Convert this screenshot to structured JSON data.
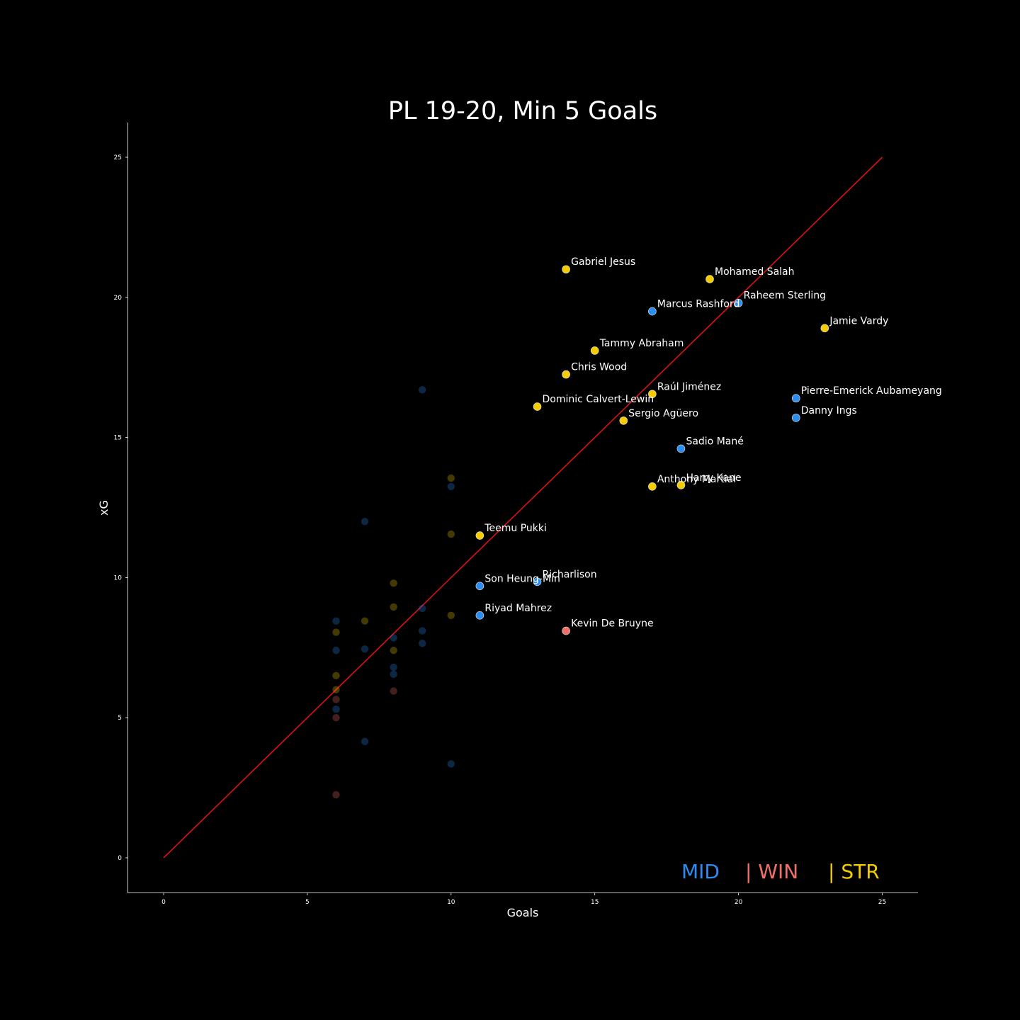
{
  "colors": {
    "background": "#000000",
    "MID": "#2b8df0",
    "WIN": "#f07068",
    "STR": "#f5cc00",
    "line": "#dd1111",
    "text": "#ffffff"
  },
  "legend": {
    "mid": "MID",
    "win": "| WIN",
    "str": "| STR"
  },
  "chart_data": {
    "type": "scatter",
    "title": "PL 19-20, Min 5 Goals",
    "xlabel": "Goals",
    "ylabel": "xG",
    "xlim": [
      -1.2,
      26.2
    ],
    "ylim": [
      -1.25,
      26.2
    ],
    "xticks": [
      0,
      5,
      10,
      15,
      20,
      25
    ],
    "yticks": [
      0,
      5,
      10,
      15,
      20,
      25
    ],
    "grid": false,
    "legend_position": "bottom-right",
    "reference_line": {
      "x": [
        0,
        25
      ],
      "y": [
        0,
        25
      ]
    },
    "labeled_points": [
      {
        "label": "Gabriel Jesus",
        "x": 14,
        "y": 21.0,
        "group": "STR"
      },
      {
        "label": "Mohamed Salah",
        "x": 19,
        "y": 20.65,
        "group": "STR"
      },
      {
        "label": "Raheem Sterling",
        "x": 20,
        "y": 19.8,
        "group": "MID"
      },
      {
        "label": "Marcus Rashford",
        "x": 17,
        "y": 19.5,
        "group": "MID"
      },
      {
        "label": "Jamie Vardy",
        "x": 23,
        "y": 18.9,
        "group": "STR"
      },
      {
        "label": "Tammy Abraham",
        "x": 15,
        "y": 18.1,
        "group": "STR"
      },
      {
        "label": "Chris Wood",
        "x": 14,
        "y": 17.25,
        "group": "STR"
      },
      {
        "label": "Raúl Jiménez",
        "x": 17,
        "y": 16.55,
        "group": "STR"
      },
      {
        "label": "Pierre-Emerick Aubameyang",
        "x": 22,
        "y": 16.4,
        "group": "MID"
      },
      {
        "label": "Dominic Calvert-Lewin",
        "x": 13,
        "y": 16.1,
        "group": "STR"
      },
      {
        "label": "Danny Ings",
        "x": 22,
        "y": 15.7,
        "group": "MID"
      },
      {
        "label": "Sergio Agüero",
        "x": 16,
        "y": 15.6,
        "group": "STR"
      },
      {
        "label": "Sadio Mané",
        "x": 18,
        "y": 14.6,
        "group": "MID"
      },
      {
        "label": "Harry Kane",
        "x": 18,
        "y": 13.3,
        "group": "STR"
      },
      {
        "label": "Anthony Martial",
        "x": 17,
        "y": 13.25,
        "group": "STR"
      },
      {
        "label": "Teemu Pukki",
        "x": 11,
        "y": 11.5,
        "group": "STR"
      },
      {
        "label": "Richarlison",
        "x": 13,
        "y": 9.85,
        "group": "MID"
      },
      {
        "label": "Son Heung-Min",
        "x": 11,
        "y": 9.7,
        "group": "MID"
      },
      {
        "label": "Riyad Mahrez",
        "x": 11,
        "y": 8.65,
        "group": "MID"
      },
      {
        "label": "Kevin De Bruyne",
        "x": 14,
        "y": 8.1,
        "group": "WIN"
      }
    ],
    "faded_points": [
      {
        "x": 9,
        "y": 16.7,
        "group": "MID"
      },
      {
        "x": 10,
        "y": 13.55,
        "group": "STR"
      },
      {
        "x": 10,
        "y": 13.25,
        "group": "MID"
      },
      {
        "x": 7,
        "y": 12.0,
        "group": "MID"
      },
      {
        "x": 10,
        "y": 11.55,
        "group": "STR"
      },
      {
        "x": 8,
        "y": 9.8,
        "group": "STR"
      },
      {
        "x": 8,
        "y": 8.95,
        "group": "STR"
      },
      {
        "x": 9,
        "y": 8.9,
        "group": "MID"
      },
      {
        "x": 10,
        "y": 8.65,
        "group": "STR"
      },
      {
        "x": 6,
        "y": 8.45,
        "group": "MID"
      },
      {
        "x": 7,
        "y": 8.45,
        "group": "STR"
      },
      {
        "x": 9,
        "y": 8.1,
        "group": "MID"
      },
      {
        "x": 6,
        "y": 8.05,
        "group": "STR"
      },
      {
        "x": 8,
        "y": 7.85,
        "group": "MID"
      },
      {
        "x": 9,
        "y": 7.65,
        "group": "MID"
      },
      {
        "x": 7,
        "y": 7.45,
        "group": "MID"
      },
      {
        "x": 6,
        "y": 7.4,
        "group": "MID"
      },
      {
        "x": 8,
        "y": 7.4,
        "group": "STR"
      },
      {
        "x": 8,
        "y": 6.8,
        "group": "MID"
      },
      {
        "x": 8,
        "y": 6.55,
        "group": "MID"
      },
      {
        "x": 6,
        "y": 6.5,
        "group": "STR"
      },
      {
        "x": 6,
        "y": 6.0,
        "group": "STR"
      },
      {
        "x": 8,
        "y": 5.95,
        "group": "WIN"
      },
      {
        "x": 6,
        "y": 5.65,
        "group": "WIN"
      },
      {
        "x": 6,
        "y": 5.3,
        "group": "MID"
      },
      {
        "x": 6,
        "y": 5.0,
        "group": "WIN"
      },
      {
        "x": 7,
        "y": 4.15,
        "group": "MID"
      },
      {
        "x": 10,
        "y": 3.35,
        "group": "MID"
      },
      {
        "x": 6,
        "y": 2.25,
        "group": "WIN"
      }
    ]
  }
}
